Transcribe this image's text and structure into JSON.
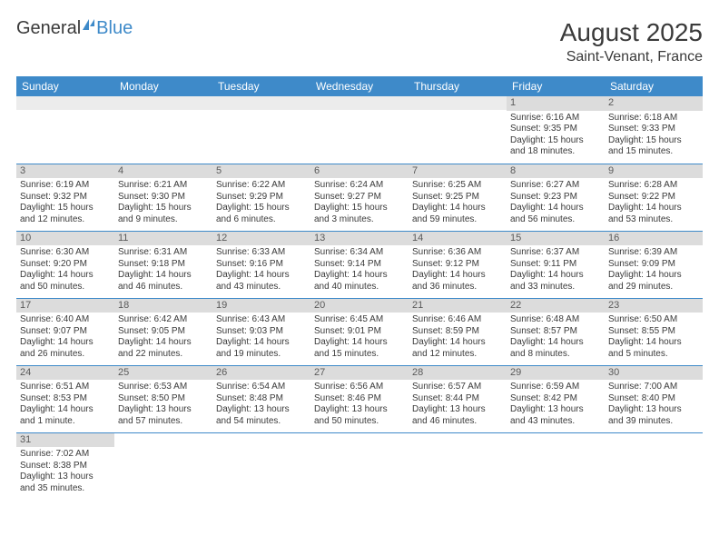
{
  "brand": {
    "part1": "General",
    "part2": "Blue"
  },
  "header": {
    "title": "August 2025",
    "location": "Saint-Venant, France"
  },
  "colors": {
    "accent": "#3e8ac9",
    "daynum_bg": "#dcdcdc",
    "text": "#3a3a3a"
  },
  "weekdays": [
    "Sunday",
    "Monday",
    "Tuesday",
    "Wednesday",
    "Thursday",
    "Friday",
    "Saturday"
  ],
  "weeks": [
    [
      null,
      null,
      null,
      null,
      null,
      {
        "n": "1",
        "sr": "Sunrise: 6:16 AM",
        "ss": "Sunset: 9:35 PM",
        "dl": "Daylight: 15 hours and 18 minutes."
      },
      {
        "n": "2",
        "sr": "Sunrise: 6:18 AM",
        "ss": "Sunset: 9:33 PM",
        "dl": "Daylight: 15 hours and 15 minutes."
      }
    ],
    [
      {
        "n": "3",
        "sr": "Sunrise: 6:19 AM",
        "ss": "Sunset: 9:32 PM",
        "dl": "Daylight: 15 hours and 12 minutes."
      },
      {
        "n": "4",
        "sr": "Sunrise: 6:21 AM",
        "ss": "Sunset: 9:30 PM",
        "dl": "Daylight: 15 hours and 9 minutes."
      },
      {
        "n": "5",
        "sr": "Sunrise: 6:22 AM",
        "ss": "Sunset: 9:29 PM",
        "dl": "Daylight: 15 hours and 6 minutes."
      },
      {
        "n": "6",
        "sr": "Sunrise: 6:24 AM",
        "ss": "Sunset: 9:27 PM",
        "dl": "Daylight: 15 hours and 3 minutes."
      },
      {
        "n": "7",
        "sr": "Sunrise: 6:25 AM",
        "ss": "Sunset: 9:25 PM",
        "dl": "Daylight: 14 hours and 59 minutes."
      },
      {
        "n": "8",
        "sr": "Sunrise: 6:27 AM",
        "ss": "Sunset: 9:23 PM",
        "dl": "Daylight: 14 hours and 56 minutes."
      },
      {
        "n": "9",
        "sr": "Sunrise: 6:28 AM",
        "ss": "Sunset: 9:22 PM",
        "dl": "Daylight: 14 hours and 53 minutes."
      }
    ],
    [
      {
        "n": "10",
        "sr": "Sunrise: 6:30 AM",
        "ss": "Sunset: 9:20 PM",
        "dl": "Daylight: 14 hours and 50 minutes."
      },
      {
        "n": "11",
        "sr": "Sunrise: 6:31 AM",
        "ss": "Sunset: 9:18 PM",
        "dl": "Daylight: 14 hours and 46 minutes."
      },
      {
        "n": "12",
        "sr": "Sunrise: 6:33 AM",
        "ss": "Sunset: 9:16 PM",
        "dl": "Daylight: 14 hours and 43 minutes."
      },
      {
        "n": "13",
        "sr": "Sunrise: 6:34 AM",
        "ss": "Sunset: 9:14 PM",
        "dl": "Daylight: 14 hours and 40 minutes."
      },
      {
        "n": "14",
        "sr": "Sunrise: 6:36 AM",
        "ss": "Sunset: 9:12 PM",
        "dl": "Daylight: 14 hours and 36 minutes."
      },
      {
        "n": "15",
        "sr": "Sunrise: 6:37 AM",
        "ss": "Sunset: 9:11 PM",
        "dl": "Daylight: 14 hours and 33 minutes."
      },
      {
        "n": "16",
        "sr": "Sunrise: 6:39 AM",
        "ss": "Sunset: 9:09 PM",
        "dl": "Daylight: 14 hours and 29 minutes."
      }
    ],
    [
      {
        "n": "17",
        "sr": "Sunrise: 6:40 AM",
        "ss": "Sunset: 9:07 PM",
        "dl": "Daylight: 14 hours and 26 minutes."
      },
      {
        "n": "18",
        "sr": "Sunrise: 6:42 AM",
        "ss": "Sunset: 9:05 PM",
        "dl": "Daylight: 14 hours and 22 minutes."
      },
      {
        "n": "19",
        "sr": "Sunrise: 6:43 AM",
        "ss": "Sunset: 9:03 PM",
        "dl": "Daylight: 14 hours and 19 minutes."
      },
      {
        "n": "20",
        "sr": "Sunrise: 6:45 AM",
        "ss": "Sunset: 9:01 PM",
        "dl": "Daylight: 14 hours and 15 minutes."
      },
      {
        "n": "21",
        "sr": "Sunrise: 6:46 AM",
        "ss": "Sunset: 8:59 PM",
        "dl": "Daylight: 14 hours and 12 minutes."
      },
      {
        "n": "22",
        "sr": "Sunrise: 6:48 AM",
        "ss": "Sunset: 8:57 PM",
        "dl": "Daylight: 14 hours and 8 minutes."
      },
      {
        "n": "23",
        "sr": "Sunrise: 6:50 AM",
        "ss": "Sunset: 8:55 PM",
        "dl": "Daylight: 14 hours and 5 minutes."
      }
    ],
    [
      {
        "n": "24",
        "sr": "Sunrise: 6:51 AM",
        "ss": "Sunset: 8:53 PM",
        "dl": "Daylight: 14 hours and 1 minute."
      },
      {
        "n": "25",
        "sr": "Sunrise: 6:53 AM",
        "ss": "Sunset: 8:50 PM",
        "dl": "Daylight: 13 hours and 57 minutes."
      },
      {
        "n": "26",
        "sr": "Sunrise: 6:54 AM",
        "ss": "Sunset: 8:48 PM",
        "dl": "Daylight: 13 hours and 54 minutes."
      },
      {
        "n": "27",
        "sr": "Sunrise: 6:56 AM",
        "ss": "Sunset: 8:46 PM",
        "dl": "Daylight: 13 hours and 50 minutes."
      },
      {
        "n": "28",
        "sr": "Sunrise: 6:57 AM",
        "ss": "Sunset: 8:44 PM",
        "dl": "Daylight: 13 hours and 46 minutes."
      },
      {
        "n": "29",
        "sr": "Sunrise: 6:59 AM",
        "ss": "Sunset: 8:42 PM",
        "dl": "Daylight: 13 hours and 43 minutes."
      },
      {
        "n": "30",
        "sr": "Sunrise: 7:00 AM",
        "ss": "Sunset: 8:40 PM",
        "dl": "Daylight: 13 hours and 39 minutes."
      }
    ],
    [
      {
        "n": "31",
        "sr": "Sunrise: 7:02 AM",
        "ss": "Sunset: 8:38 PM",
        "dl": "Daylight: 13 hours and 35 minutes."
      },
      null,
      null,
      null,
      null,
      null,
      null
    ]
  ]
}
